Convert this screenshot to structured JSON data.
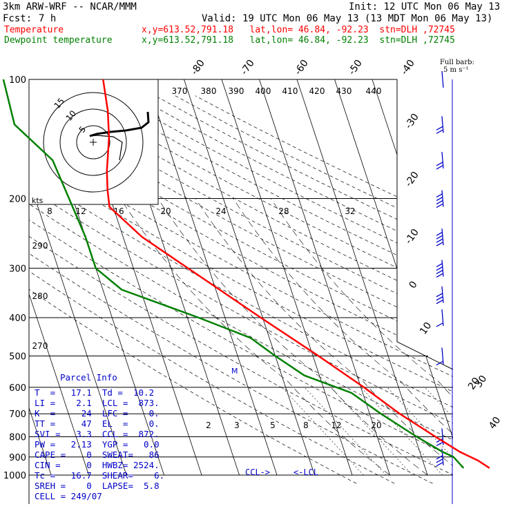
{
  "header": {
    "model": "3km ARW-WRF -- NCAR/MMM",
    "init": "Init: 12 UTC Mon 06 May 13",
    "fcst_label": "Fcst:",
    "fcst_value": "7 h",
    "valid": "Valid: 19 UTC Mon 06 May 13 (13 MDT Mon 06 May 13)",
    "temp_label": "Temperature",
    "temp_info": "x,y=613.52,791.18   lat,lon= 46.84, -92.23  stn=DLH ,72745",
    "dew_label": "Dewpoint temperature",
    "dew_info": "x,y=613.52,791.18   lat,lon= 46.84, -92.23  stn=DLH ,72745"
  },
  "colors": {
    "temperature": "#ff0000",
    "dewpoint": "#008000",
    "hodograph": "#000000",
    "wind_barbs": "#0000c8",
    "parcel_text": "#0000c8",
    "isobars": "#000000"
  },
  "wind_legend": {
    "line1": "Full barb:",
    "line2": "5 m s⁻¹"
  },
  "parcel_info": {
    "title": "Parcel Info",
    "rows": [
      "T  =   17.1  Td =  10.2",
      "LI =    2.1  LCL =  873.",
      "K  =     24  LFC =    0.",
      "TT =     47  EL  =    0.",
      "SVI =   3.3  CCL =  872.",
      "PW =   2.13  YGP =   0.0",
      "CAPE =    0  SWEAT=   86",
      "CIN =     0  HWBZ= 2524.",
      "Tc =   16.7  SHEAR=    6.",
      "SREH =    0  LAPSE=  5.8",
      "CELL = 249/07"
    ]
  },
  "chart_data": {
    "type": "line",
    "subtype": "skew-T log-P sounding",
    "y_axis": {
      "scale": "log",
      "units": "hPa",
      "ticks": [
        100,
        200,
        300,
        400,
        500,
        600,
        700,
        800,
        900,
        1000
      ],
      "range": [
        1000,
        100
      ]
    },
    "isotherm_labels": [
      "-80",
      "-70",
      "-60",
      "-50",
      "-40",
      "-30",
      "-20",
      "-10",
      "0",
      "10",
      "20",
      "30",
      "40"
    ],
    "dry_adiabat_labels": [
      "370",
      "380",
      "390",
      "400",
      "410",
      "420",
      "430",
      "440",
      "290",
      "280",
      "270"
    ],
    "mixing_ratio_upper_labels": [
      "8",
      "12",
      "16",
      "20",
      "24",
      "28",
      "32"
    ],
    "mixing_ratio_lower_labels": [
      "2",
      "3",
      "5",
      "8",
      "12",
      "20"
    ],
    "hodograph": {
      "unit_label": "kts",
      "ring_labels": [
        "5",
        "10",
        "15"
      ]
    },
    "markers": {
      "ccl": "CCL->",
      "lcl": "<-LCL",
      "m": "M"
    },
    "series": [
      {
        "name": "Temperature",
        "points": [
          {
            "p": 960,
            "t": 17.1
          },
          {
            "p": 920,
            "t": 14.8
          },
          {
            "p": 873,
            "t": 10.6
          },
          {
            "p": 800,
            "t": 5.5
          },
          {
            "p": 700,
            "t": -2.0
          },
          {
            "p": 600,
            "t": -9.2
          },
          {
            "p": 500,
            "t": -18.5
          },
          {
            "p": 400,
            "t": -30.5
          },
          {
            "p": 300,
            "t": -45.5
          },
          {
            "p": 250,
            "t": -55.0
          },
          {
            "p": 210,
            "t": -61.0
          },
          {
            "p": 190,
            "t": -60.0
          },
          {
            "p": 170,
            "t": -58.5
          },
          {
            "p": 140,
            "t": -55.0
          },
          {
            "p": 120,
            "t": -53.0
          },
          {
            "p": 100,
            "t": -51.5
          }
        ]
      },
      {
        "name": "Dewpoint temperature",
        "points": [
          {
            "p": 960,
            "t": 10.2
          },
          {
            "p": 900,
            "t": 8.5
          },
          {
            "p": 873,
            "t": 6.0
          },
          {
            "p": 800,
            "t": 0.5
          },
          {
            "p": 700,
            "t": -7.0
          },
          {
            "p": 620,
            "t": -13.0
          },
          {
            "p": 560,
            "t": -24.0
          },
          {
            "p": 500,
            "t": -30.0
          },
          {
            "p": 450,
            "t": -35.0
          },
          {
            "p": 400,
            "t": -47.0
          },
          {
            "p": 340,
            "t": -65.0
          },
          {
            "p": 300,
            "t": -70.0
          },
          {
            "p": 250,
            "t": -70.0
          },
          {
            "p": 200,
            "t": -71.0
          },
          {
            "p": 160,
            "t": -72.0
          },
          {
            "p": 130,
            "t": -79.0
          },
          {
            "p": 100,
            "t": -78.0
          }
        ]
      }
    ],
    "wind_profile": [
      {
        "p": 100,
        "flag": 0,
        "barbs": 0
      },
      {
        "p": 130,
        "flag": 0,
        "barbs": 2
      },
      {
        "p": 160,
        "flag": 0,
        "barbs": 2
      },
      {
        "p": 200,
        "flag": 0,
        "barbs": 4
      },
      {
        "p": 250,
        "flag": 0,
        "barbs": 4
      },
      {
        "p": 300,
        "flag": 0,
        "barbs": 4
      },
      {
        "p": 350,
        "flag": 0,
        "barbs": 3
      },
      {
        "p": 400,
        "flag": 0,
        "barbs": 1
      },
      {
        "p": 500,
        "flag": 0,
        "barbs": 1
      },
      {
        "p": 800,
        "flag": 0,
        "barbs": 2
      },
      {
        "p": 900,
        "flag": 0,
        "barbs": 3
      }
    ]
  }
}
